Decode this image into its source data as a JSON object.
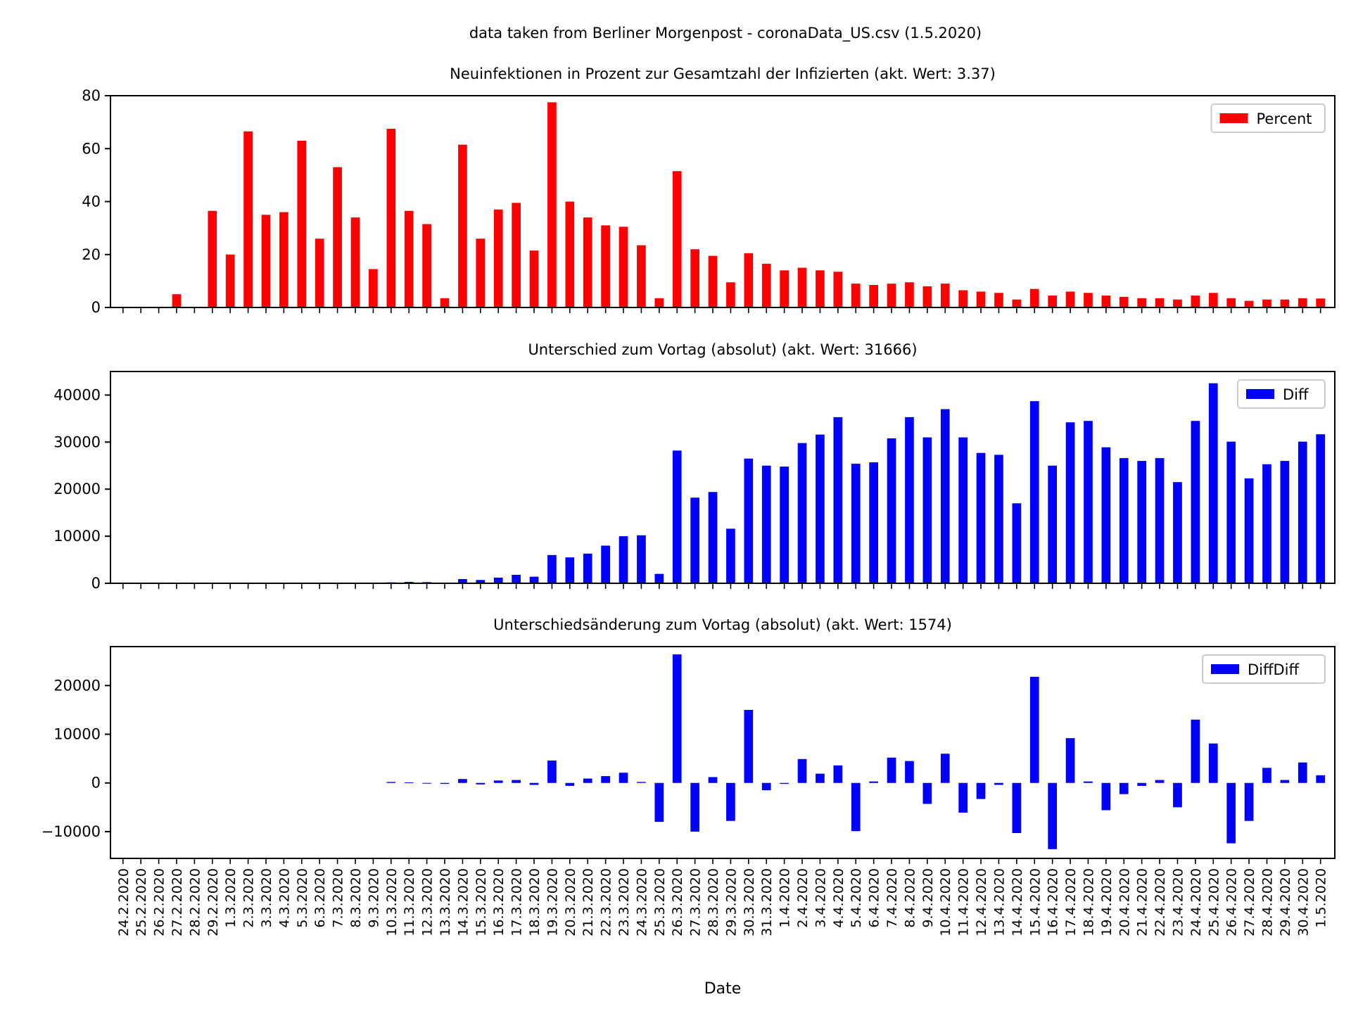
{
  "figure_title": "data taken from Berliner Morgenpost - coronaData_US.csv (1.5.2020)",
  "chart_data": [
    {
      "type": "bar",
      "title": "Neuinfektionen in Prozent zur Gesamtzahl der Infizierten (akt. Wert: 3.37)",
      "xlabel": "",
      "ylabel": "",
      "ylim": [
        0,
        80
      ],
      "yticks": [
        0,
        20,
        40,
        60,
        80
      ],
      "ytick_labels": [
        "0",
        "20",
        "40",
        "60",
        "80"
      ],
      "color": "#ff0000",
      "legend": {
        "label": "Percent",
        "position": "upper-right"
      },
      "values": [
        0,
        0,
        0,
        5,
        0,
        36.5,
        20,
        66.5,
        35,
        36,
        63,
        26,
        53,
        34,
        14.5,
        67.5,
        36.5,
        31.5,
        3.5,
        61.5,
        26,
        37,
        39.5,
        21.5,
        77.5,
        40,
        34,
        31,
        30.5,
        23.5,
        3.5,
        51.5,
        22,
        19.5,
        9.5,
        20.5,
        16.5,
        14,
        15,
        14,
        13.5,
        9,
        8.5,
        9,
        9.5,
        8,
        9,
        6.5,
        6,
        5.5,
        3,
        7,
        4.5,
        6,
        5.5,
        4.5,
        4,
        3.5,
        3.5,
        3,
        4.5,
        5.5,
        3.5,
        2.5,
        3,
        3,
        3.5,
        3.37
      ]
    },
    {
      "type": "bar",
      "title": "Unterschied zum Vortag (absolut) (akt. Wert: 31666)",
      "xlabel": "",
      "ylabel": "",
      "ylim": [
        0,
        45000
      ],
      "yticks": [
        0,
        10000,
        20000,
        30000,
        40000
      ],
      "ytick_labels": [
        "0",
        "10000",
        "20000",
        "30000",
        "40000"
      ],
      "color": "#0000ff",
      "legend": {
        "label": "Diff",
        "position": "upper-right"
      },
      "values": [
        0,
        0,
        0,
        0,
        0,
        0,
        0,
        0,
        0,
        0,
        0,
        0,
        0,
        0,
        0,
        200,
        300,
        250,
        150,
        900,
        700,
        1200,
        1800,
        1400,
        6000,
        5500,
        6300,
        8000,
        10000,
        10200,
        2000,
        28200,
        18200,
        19400,
        11600,
        26500,
        25000,
        24800,
        29800,
        31600,
        35300,
        25400,
        25700,
        30800,
        35300,
        31000,
        37000,
        31000,
        27700,
        27300,
        17000,
        38700,
        25000,
        34200,
        34500,
        28900,
        26600,
        26000,
        26600,
        21500,
        34500,
        42500,
        30100,
        22300,
        25300,
        26000,
        30100,
        31666
      ]
    },
    {
      "type": "bar",
      "title": "Unterschiedsänderung zum Vortag (absolut) (akt. Wert: 1574)",
      "xlabel": "Date",
      "ylabel": "",
      "ylim": [
        -15500,
        28000
      ],
      "yticks": [
        -10000,
        0,
        10000,
        20000
      ],
      "ytick_labels": [
        "−10000",
        "0",
        "10000",
        "20000"
      ],
      "color": "#0000ff",
      "legend": {
        "label": "DiffDiff",
        "position": "upper-right"
      },
      "values": [
        0,
        0,
        0,
        0,
        0,
        0,
        0,
        0,
        0,
        0,
        0,
        0,
        0,
        0,
        0,
        200,
        100,
        -100,
        -200,
        800,
        -300,
        500,
        600,
        -400,
        4600,
        -600,
        900,
        1400,
        2100,
        200,
        -8000,
        26400,
        -10000,
        1200,
        -7800,
        15000,
        -1500,
        -200,
        4900,
        1900,
        3600,
        -9900,
        300,
        5200,
        4500,
        -4300,
        6000,
        -6100,
        -3300,
        -400,
        -10300,
        21800,
        -13600,
        9200,
        300,
        -5600,
        -2300,
        -600,
        600,
        -5000,
        13000,
        8100,
        -12400,
        -7800,
        3100,
        600,
        4200,
        1574
      ]
    }
  ],
  "dates": [
    "24.2.2020",
    "25.2.2020",
    "26.2.2020",
    "27.2.2020",
    "28.2.2020",
    "29.2.2020",
    "1.3.2020",
    "2.3.2020",
    "3.3.2020",
    "4.3.2020",
    "5.3.2020",
    "6.3.2020",
    "7.3.2020",
    "8.3.2020",
    "9.3.2020",
    "10.3.2020",
    "11.3.2020",
    "12.3.2020",
    "13.3.2020",
    "14.3.2020",
    "15.3.2020",
    "16.3.2020",
    "17.3.2020",
    "18.3.2020",
    "19.3.2020",
    "20.3.2020",
    "21.3.2020",
    "22.3.2020",
    "23.3.2020",
    "24.3.2020",
    "25.3.2020",
    "26.3.2020",
    "27.3.2020",
    "28.3.2020",
    "29.3.2020",
    "30.3.2020",
    "31.3.2020",
    "1.4.2020",
    "2.4.2020",
    "3.4.2020",
    "4.4.2020",
    "5.4.2020",
    "6.4.2020",
    "7.4.2020",
    "8.4.2020",
    "9.4.2020",
    "10.4.2020",
    "11.4.2020",
    "12.4.2020",
    "13.4.2020",
    "14.4.2020",
    "15.4.2020",
    "16.4.2020",
    "17.4.2020",
    "18.4.2020",
    "19.4.2020",
    "20.4.2020",
    "21.4.2020",
    "22.4.2020",
    "23.4.2020",
    "24.4.2020",
    "25.4.2020",
    "26.4.2020",
    "27.4.2020",
    "28.4.2020",
    "29.4.2020",
    "30.4.2020",
    "1.5.2020"
  ]
}
